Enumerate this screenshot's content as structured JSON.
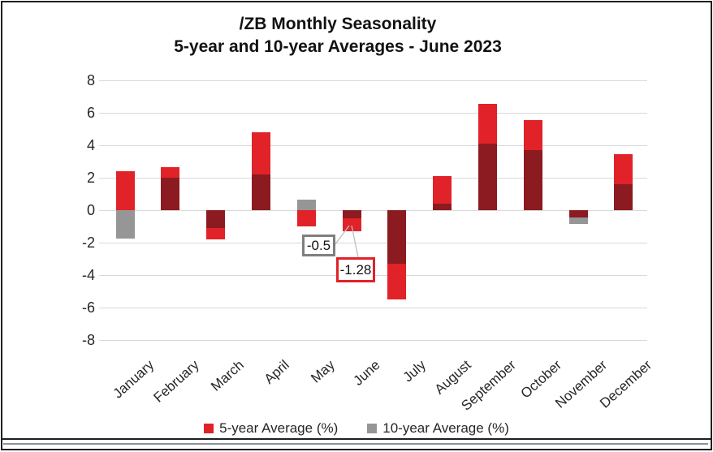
{
  "title": {
    "line1": "/ZB Monthly Seasonality",
    "line2": "5-year and 10-year Averages - June 2023"
  },
  "chart_data": {
    "type": "bar",
    "title": "/ZB Monthly Seasonality — 5-year and 10-year Averages - June 2023",
    "categories": [
      "January",
      "February",
      "March",
      "April",
      "May",
      "June",
      "July",
      "August",
      "September",
      "October",
      "November",
      "December"
    ],
    "series": [
      {
        "name": "5-year Average (%)",
        "color": "#e12229",
        "values": [
          2.4,
          2.65,
          -1.8,
          4.8,
          -1.0,
          -1.28,
          -5.5,
          2.1,
          6.55,
          5.55,
          -0.45,
          3.45
        ]
      },
      {
        "name": "10-year Average (%)",
        "color": "#969696",
        "values": [
          -1.75,
          2.0,
          -1.1,
          2.2,
          0.65,
          -0.5,
          -3.3,
          0.4,
          4.1,
          3.7,
          -0.85,
          1.6
        ]
      }
    ],
    "overlap_color": "#8b1b20",
    "ylim": [
      -8,
      8
    ],
    "yticks": [
      8,
      6,
      4,
      2,
      0,
      -2,
      -4,
      -6,
      -8
    ],
    "grid": true,
    "gridline_color": "#d9d9d9",
    "legend_position": "bottom",
    "annotations": [
      {
        "text": "-0.5",
        "month": "June",
        "series": "10-year Average (%)",
        "border_color": "#7f7f7f"
      },
      {
        "text": "-1.28",
        "month": "June",
        "series": "5-year Average (%)",
        "border_color": "#e12229"
      }
    ]
  },
  "colors": {
    "frame": "#1f1f1f",
    "text": "#262626",
    "leader_line": "#bfbfbf",
    "worksheet_line": "#8b93a0"
  }
}
